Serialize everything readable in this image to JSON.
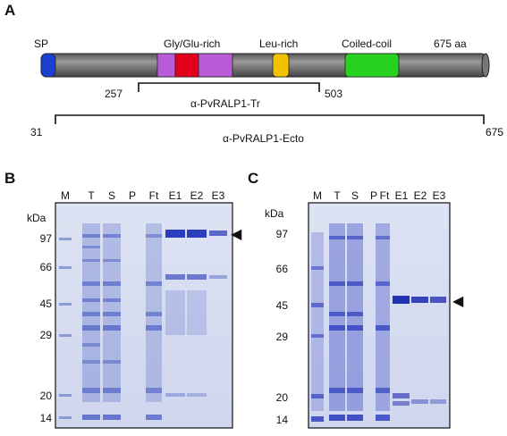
{
  "panels": {
    "a": "A",
    "b": "B",
    "c": "C"
  },
  "domain_map": {
    "sp": "SP",
    "gly_glu": "Gly/Glu-rich",
    "leu": "Leu-rich",
    "coiled": "Coiled-coil",
    "length": "675 aa",
    "tr_start": "257",
    "tr_end": "503",
    "tr_name": "α-PvRALP1-Tr",
    "ecto_start": "31",
    "ecto_end": "675",
    "ecto_name": "α-PvRALP1-Ecto",
    "colors": {
      "body": "#7a7a7a",
      "sp": "#1a3fd1",
      "gly": "#b95ad6",
      "red": "#e3001a",
      "leu": "#f2c200",
      "coiled": "#26d11f"
    }
  },
  "gel_b": {
    "lanes": [
      "M",
      "T",
      "S",
      "P",
      "Ft",
      "E1",
      "E2",
      "E3"
    ],
    "kda_label": "kDa",
    "markers": [
      "97",
      "66",
      "45",
      "29",
      "20",
      "14"
    ],
    "arrow": "◀"
  },
  "gel_c": {
    "lanes": [
      "M",
      "T",
      "S",
      "P",
      "Ft",
      "E1",
      "E2",
      "E3"
    ],
    "kda_label": "kDa",
    "markers": [
      "97",
      "66",
      "45",
      "29",
      "20",
      "14"
    ],
    "arrow": "◀"
  }
}
